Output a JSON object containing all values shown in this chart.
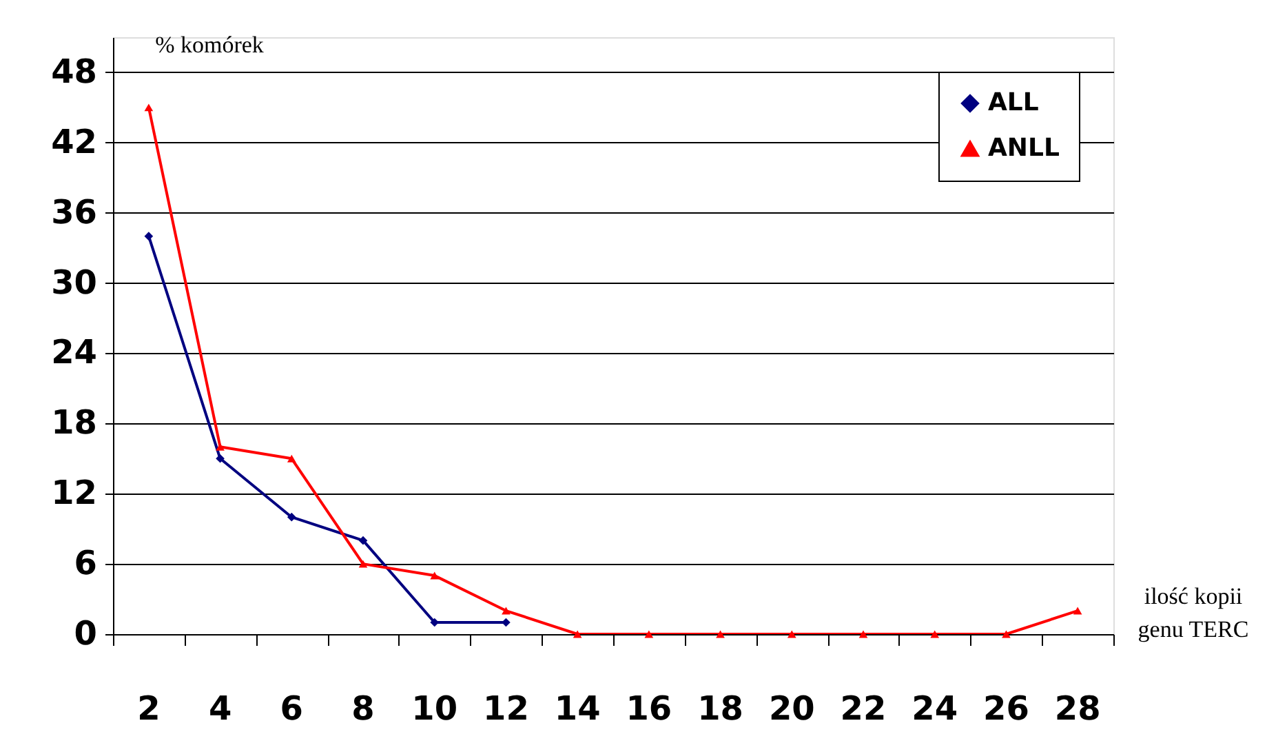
{
  "chart_data": {
    "type": "line",
    "xlabel": "ilość kopii\ngenu TERC",
    "ylabel": "% komórek",
    "categories": [
      "2",
      "4",
      "6",
      "8",
      "10",
      "12",
      "14",
      "16",
      "18",
      "20",
      "22",
      "24",
      "26",
      "28"
    ],
    "series": [
      {
        "name": "ALL",
        "color": "#000080",
        "marker": "diamond",
        "values": [
          34,
          15,
          10,
          8,
          1,
          1,
          null,
          null,
          null,
          null,
          null,
          null,
          null,
          null
        ]
      },
      {
        "name": "ANLL",
        "color": "#ff0000",
        "marker": "triangle",
        "values": [
          45,
          16,
          15,
          6,
          5,
          2,
          0,
          0,
          0,
          0,
          0,
          0,
          0,
          2
        ]
      }
    ],
    "ylim": [
      0,
      51
    ],
    "yticks": [
      0,
      6,
      12,
      18,
      24,
      30,
      36,
      42,
      48
    ],
    "grid": "y",
    "legend": "top right"
  }
}
